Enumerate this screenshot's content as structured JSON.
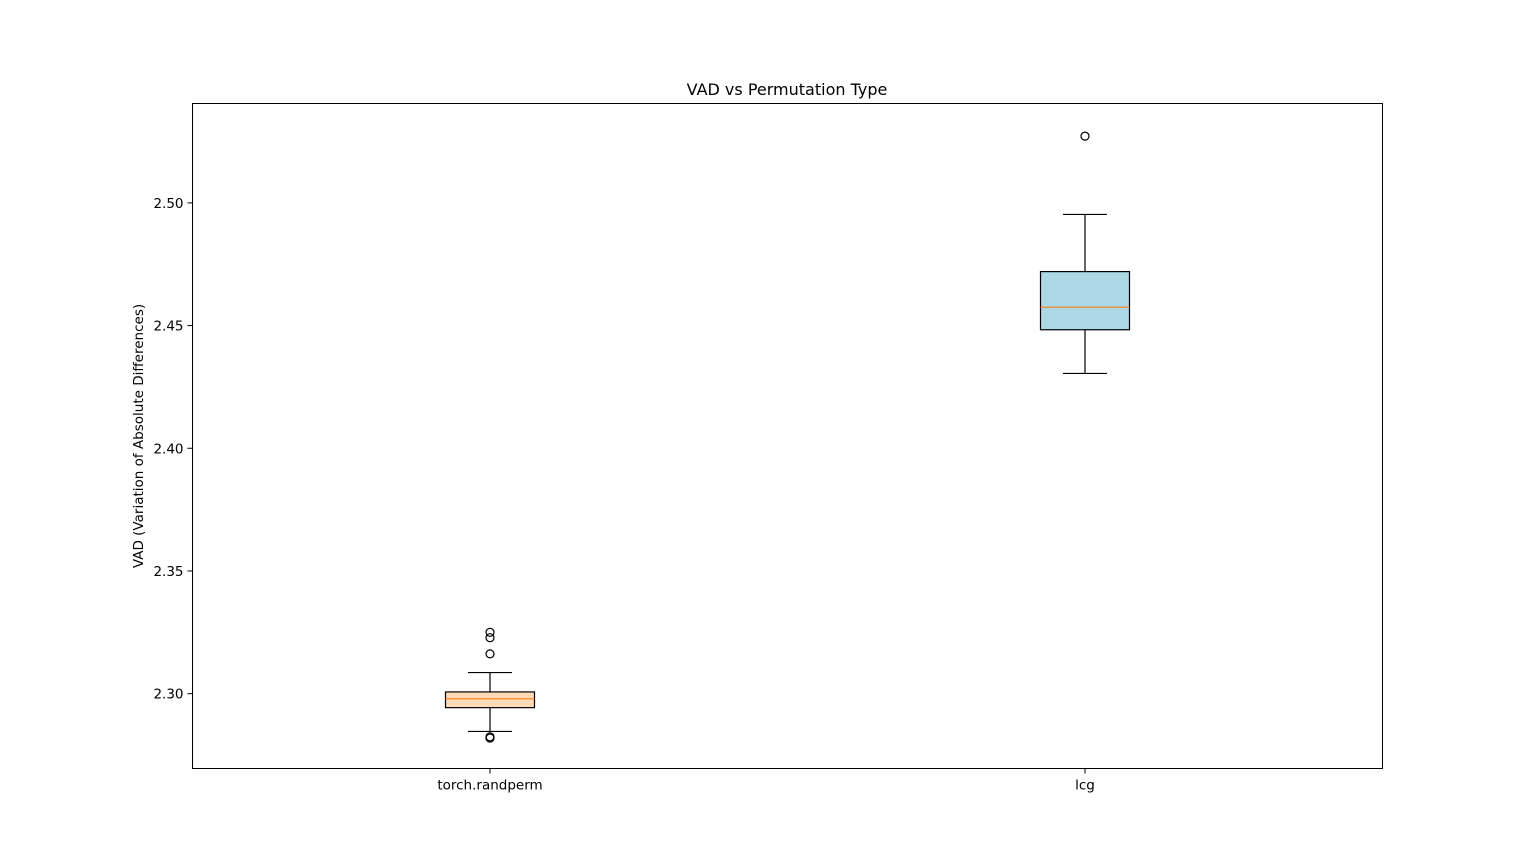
{
  "chart_data": {
    "type": "box",
    "title": "VAD vs Permutation Type",
    "xlabel": "",
    "ylabel": "VAD (Variation of Absolute Differences)",
    "ylim": [
      2.2695,
      2.5405
    ],
    "yticks": [
      2.3,
      2.35,
      2.4,
      2.45,
      2.5
    ],
    "ytick_labels": [
      "2.30",
      "2.35",
      "2.40",
      "2.45",
      "2.50"
    ],
    "grid": false,
    "categories": [
      "torch.randperm",
      "lcg"
    ],
    "boxes": [
      {
        "category": "torch.randperm",
        "whisker_low": 2.2846,
        "q1": 2.2943,
        "median": 2.2979,
        "q3": 2.3007,
        "whisker_high": 2.3086,
        "outliers": [
          2.2819,
          2.2824,
          2.3162,
          2.3228,
          2.325
        ],
        "fill_color": "#ffdab9"
      },
      {
        "category": "lcg",
        "whisker_low": 2.4305,
        "q1": 2.4483,
        "median": 2.4575,
        "q3": 2.472,
        "whisker_high": 2.4953,
        "outliers": [
          2.5272
        ],
        "fill_color": "#add8e6"
      }
    ],
    "median_color": "#ff7f0e"
  }
}
